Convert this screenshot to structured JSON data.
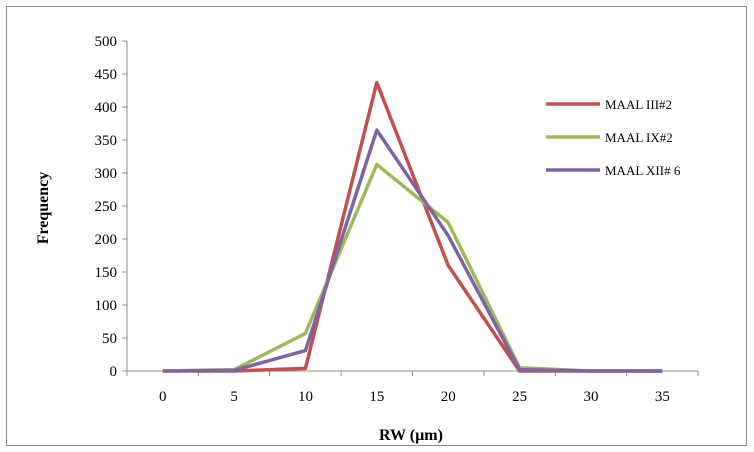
{
  "chart_data": {
    "type": "line",
    "title": "",
    "xlabel": "RW (µm)",
    "ylabel": "Frequency",
    "x": [
      0,
      5,
      10,
      15,
      20,
      25,
      30,
      35
    ],
    "ylim": [
      0,
      500
    ],
    "yticks": [
      0,
      50,
      100,
      150,
      200,
      250,
      300,
      350,
      400,
      450,
      500
    ],
    "grid": false,
    "legend_position": "right",
    "series": [
      {
        "name": "MAAL III#2",
        "color": "#c0504d",
        "values": [
          0,
          0,
          4,
          437,
          160,
          0,
          0,
          0
        ]
      },
      {
        "name": "MAAL IX#2",
        "color": "#9bbb59",
        "values": [
          0,
          2,
          57,
          313,
          225,
          5,
          0,
          0
        ]
      },
      {
        "name": "MAAL XII# 6",
        "color": "#8064a2",
        "values": [
          0,
          1,
          31,
          365,
          205,
          2,
          0,
          0
        ]
      }
    ]
  }
}
